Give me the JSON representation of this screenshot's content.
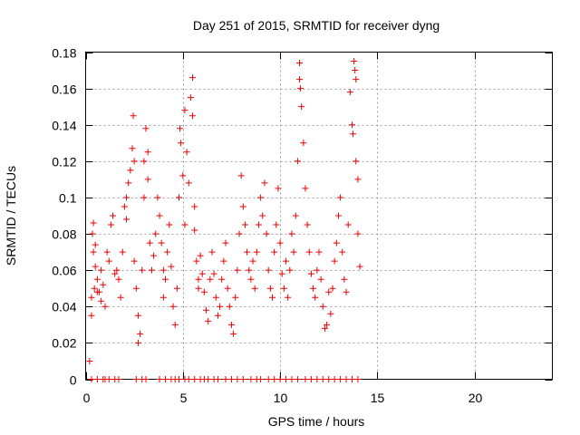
{
  "chart_data": {
    "type": "scatter",
    "title": "Day 251 of 2015, SRMTID for receiver dyng",
    "xlabel": "GPS time / hours",
    "ylabel": "SRMTID / TECUs",
    "xlim": [
      0,
      24
    ],
    "ylim": [
      0,
      0.18
    ],
    "x_ticks": [
      0,
      5,
      10,
      15,
      20
    ],
    "y_ticks": [
      0,
      0.02,
      0.04,
      0.06,
      0.08,
      0.1,
      0.12,
      0.14,
      0.16,
      0.18
    ],
    "x_tick_labels": [
      "0",
      "5",
      "10",
      "15",
      "20"
    ],
    "y_tick_labels": [
      "0",
      "0.02",
      "0.04",
      "0.06",
      "0.08",
      "0.1",
      "0.12",
      "0.14",
      "0.16",
      "0.18"
    ],
    "grid": true,
    "marker": "+",
    "color": "#ee0000",
    "series": [
      {
        "name": "dyng",
        "points": [
          [
            0.2,
            0.01
          ],
          [
            0.3,
            0.035
          ],
          [
            0.3,
            0.045
          ],
          [
            0.35,
            0.08
          ],
          [
            0.4,
            0.07
          ],
          [
            0.4,
            0.086
          ],
          [
            0.45,
            0.05
          ],
          [
            0.5,
            0.062
          ],
          [
            0.5,
            0.074
          ],
          [
            0.6,
            0.048
          ],
          [
            0.6,
            0.055
          ],
          [
            0.7,
            0.048
          ],
          [
            0.8,
            0.043
          ],
          [
            0.8,
            0.06
          ],
          [
            0.9,
            0.052
          ],
          [
            1.0,
            0.04
          ],
          [
            1.1,
            0.07
          ],
          [
            1.2,
            0.065
          ],
          [
            1.3,
            0.085
          ],
          [
            1.4,
            0.09
          ],
          [
            1.5,
            0.058
          ],
          [
            1.6,
            0.06
          ],
          [
            1.7,
            0.055
          ],
          [
            1.8,
            0.045
          ],
          [
            1.9,
            0.07
          ],
          [
            2.0,
            0.095
          ],
          [
            2.1,
            0.088
          ],
          [
            2.1,
            0.1
          ],
          [
            2.2,
            0.108
          ],
          [
            2.3,
            0.115
          ],
          [
            2.4,
            0.127
          ],
          [
            2.45,
            0.145
          ],
          [
            2.5,
            0.12
          ],
          [
            2.5,
            0.065
          ],
          [
            2.6,
            0.05
          ],
          [
            2.7,
            0.035
          ],
          [
            2.7,
            0.02
          ],
          [
            2.8,
            0.025
          ],
          [
            2.9,
            0.06
          ],
          [
            3.0,
            0.1
          ],
          [
            3.0,
            0.12
          ],
          [
            3.1,
            0.138
          ],
          [
            3.2,
            0.125
          ],
          [
            3.2,
            0.11
          ],
          [
            3.3,
            0.075
          ],
          [
            3.4,
            0.06
          ],
          [
            3.5,
            0.068
          ],
          [
            3.6,
            0.08
          ],
          [
            3.7,
            0.1
          ],
          [
            3.8,
            0.09
          ],
          [
            3.9,
            0.075
          ],
          [
            4.0,
            0.06
          ],
          [
            4.0,
            0.045
          ],
          [
            4.1,
            0.055
          ],
          [
            4.2,
            0.07
          ],
          [
            4.3,
            0.085
          ],
          [
            4.4,
            0.062
          ],
          [
            4.5,
            0.04
          ],
          [
            4.6,
            0.03
          ],
          [
            4.7,
            0.05
          ],
          [
            4.8,
            0.1
          ],
          [
            4.85,
            0.138
          ],
          [
            4.9,
            0.13
          ],
          [
            5.0,
            0.112
          ],
          [
            5.1,
            0.085
          ],
          [
            5.1,
            0.148
          ],
          [
            5.2,
            0.125
          ],
          [
            5.3,
            0.108
          ],
          [
            5.4,
            0.155
          ],
          [
            5.5,
            0.166
          ],
          [
            5.5,
            0.145
          ],
          [
            5.6,
            0.095
          ],
          [
            5.6,
            0.082
          ],
          [
            5.7,
            0.065
          ],
          [
            5.8,
            0.05
          ],
          [
            5.8,
            0.055
          ],
          [
            5.9,
            0.068
          ],
          [
            6.0,
            0.058
          ],
          [
            6.1,
            0.048
          ],
          [
            6.2,
            0.038
          ],
          [
            6.3,
            0.032
          ],
          [
            6.4,
            0.055
          ],
          [
            6.5,
            0.07
          ],
          [
            6.6,
            0.058
          ],
          [
            6.7,
            0.045
          ],
          [
            6.8,
            0.035
          ],
          [
            6.9,
            0.04
          ],
          [
            7.0,
            0.055
          ],
          [
            7.1,
            0.065
          ],
          [
            7.2,
            0.075
          ],
          [
            7.3,
            0.05
          ],
          [
            7.4,
            0.04
          ],
          [
            7.5,
            0.03
          ],
          [
            7.6,
            0.025
          ],
          [
            7.7,
            0.045
          ],
          [
            7.8,
            0.06
          ],
          [
            7.9,
            0.08
          ],
          [
            8.0,
            0.112
          ],
          [
            8.1,
            0.095
          ],
          [
            8.2,
            0.085
          ],
          [
            8.3,
            0.07
          ],
          [
            8.4,
            0.06
          ],
          [
            8.5,
            0.055
          ],
          [
            8.6,
            0.065
          ],
          [
            8.7,
            0.05
          ],
          [
            8.8,
            0.07
          ],
          [
            8.9,
            0.085
          ],
          [
            9.0,
            0.1
          ],
          [
            9.1,
            0.09
          ],
          [
            9.2,
            0.108
          ],
          [
            9.3,
            0.08
          ],
          [
            9.4,
            0.06
          ],
          [
            9.5,
            0.05
          ],
          [
            9.6,
            0.045
          ],
          [
            9.7,
            0.07
          ],
          [
            9.8,
            0.085
          ],
          [
            9.9,
            0.105
          ],
          [
            10.0,
            0.075
          ],
          [
            10.1,
            0.058
          ],
          [
            10.2,
            0.05
          ],
          [
            10.3,
            0.065
          ],
          [
            10.4,
            0.045
          ],
          [
            10.5,
            0.06
          ],
          [
            10.6,
            0.08
          ],
          [
            10.7,
            0.07
          ],
          [
            10.8,
            0.09
          ],
          [
            10.9,
            0.12
          ],
          [
            11.0,
            0.174
          ],
          [
            11.0,
            0.165
          ],
          [
            11.05,
            0.16
          ],
          [
            11.1,
            0.15
          ],
          [
            11.2,
            0.13
          ],
          [
            11.3,
            0.105
          ],
          [
            11.4,
            0.085
          ],
          [
            11.5,
            0.07
          ],
          [
            11.6,
            0.058
          ],
          [
            11.7,
            0.05
          ],
          [
            11.8,
            0.045
          ],
          [
            11.9,
            0.06
          ],
          [
            12.0,
            0.07
          ],
          [
            12.1,
            0.055
          ],
          [
            12.2,
            0.04
          ],
          [
            12.3,
            0.028
          ],
          [
            12.4,
            0.03
          ],
          [
            12.5,
            0.048
          ],
          [
            12.6,
            0.036
          ],
          [
            12.7,
            0.05
          ],
          [
            12.8,
            0.065
          ],
          [
            12.9,
            0.075
          ],
          [
            13.0,
            0.09
          ],
          [
            13.1,
            0.1
          ],
          [
            13.2,
            0.07
          ],
          [
            13.3,
            0.055
          ],
          [
            13.4,
            0.048
          ],
          [
            13.5,
            0.085
          ],
          [
            13.6,
            0.158
          ],
          [
            13.7,
            0.14
          ],
          [
            13.75,
            0.135
          ],
          [
            13.8,
            0.175
          ],
          [
            13.85,
            0.17
          ],
          [
            13.9,
            0.165
          ],
          [
            13.9,
            0.12
          ],
          [
            14.0,
            0.11
          ],
          [
            14.0,
            0.08
          ],
          [
            14.1,
            0.062
          ],
          [
            0.3,
            0
          ],
          [
            0.6,
            0
          ],
          [
            0.9,
            0
          ],
          [
            1.0,
            0
          ],
          [
            1.2,
            0
          ],
          [
            1.5,
            0
          ],
          [
            1.7,
            0
          ],
          [
            2.6,
            0
          ],
          [
            2.9,
            0
          ],
          [
            3.1,
            0
          ],
          [
            3.8,
            0
          ],
          [
            4.1,
            0
          ],
          [
            4.4,
            0
          ],
          [
            4.6,
            0
          ],
          [
            4.8,
            0
          ],
          [
            5.1,
            0
          ],
          [
            5.3,
            0
          ],
          [
            5.6,
            0
          ],
          [
            5.9,
            0
          ],
          [
            6.1,
            0
          ],
          [
            6.3,
            0
          ],
          [
            6.6,
            0
          ],
          [
            6.8,
            0
          ],
          [
            7.2,
            0
          ],
          [
            7.5,
            0
          ],
          [
            7.8,
            0
          ],
          [
            8.1,
            0
          ],
          [
            8.5,
            0
          ],
          [
            8.8,
            0
          ],
          [
            9.0,
            0
          ],
          [
            9.4,
            0
          ],
          [
            9.7,
            0
          ],
          [
            10.0,
            0
          ],
          [
            10.3,
            0
          ],
          [
            10.6,
            0
          ],
          [
            10.9,
            0
          ],
          [
            11.3,
            0
          ],
          [
            11.6,
            0
          ],
          [
            11.9,
            0
          ],
          [
            12.2,
            0
          ],
          [
            12.5,
            0
          ],
          [
            12.8,
            0
          ],
          [
            13.1,
            0
          ],
          [
            13.4,
            0
          ],
          [
            13.7,
            0
          ],
          [
            14.0,
            0
          ]
        ]
      }
    ]
  }
}
